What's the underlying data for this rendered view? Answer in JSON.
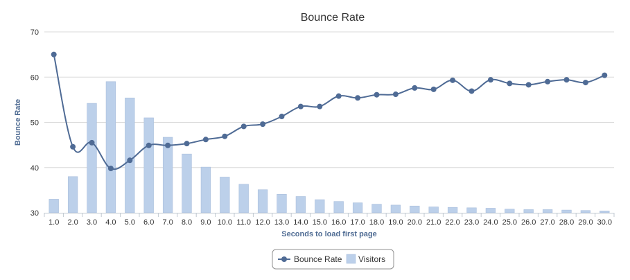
{
  "chart_data": {
    "type": "bar+line",
    "title": "Bounce Rate",
    "xlabel": "Seconds to load first page",
    "ylabel": "Bounce Rate",
    "ylim": [
      30,
      70
    ],
    "yticks": [
      "30",
      "40",
      "50",
      "60",
      "70"
    ],
    "grid": true,
    "legend_position": "bottom-center",
    "categories": [
      "1.0",
      "2.0",
      "3.0",
      "4.0",
      "5.0",
      "6.0",
      "7.0",
      "8.0",
      "9.0",
      "10.0",
      "11.0",
      "12.0",
      "13.0",
      "14.0",
      "15.0",
      "16.0",
      "17.0",
      "18.0",
      "19.0",
      "20.0",
      "21.0",
      "22.0",
      "23.0",
      "24.0",
      "25.0",
      "26.0",
      "27.0",
      "28.0",
      "29.0",
      "30.0"
    ],
    "series": [
      {
        "name": "Bounce Rate",
        "type": "line",
        "color": "#4f6b95",
        "values": [
          65.0,
          44.6,
          45.5,
          39.8,
          41.6,
          44.9,
          44.9,
          45.3,
          46.2,
          46.9,
          49.1,
          49.6,
          51.3,
          53.5,
          53.5,
          55.8,
          55.4,
          56.1,
          56.2,
          57.6,
          57.3,
          59.3,
          56.9,
          59.4,
          58.6,
          58.3,
          59.0,
          59.4,
          58.8,
          60.4
        ]
      },
      {
        "name": "Visitors",
        "type": "bar",
        "color": "#bcd0ea",
        "values": [
          33.0,
          38.0,
          54.2,
          59.0,
          55.4,
          51.0,
          46.7,
          43.0,
          40.1,
          37.9,
          36.3,
          35.1,
          34.1,
          33.6,
          32.9,
          32.5,
          32.2,
          31.9,
          31.7,
          31.5,
          31.3,
          31.2,
          31.1,
          31.0,
          30.8,
          30.7,
          30.7,
          30.6,
          30.5,
          30.4
        ]
      }
    ]
  }
}
